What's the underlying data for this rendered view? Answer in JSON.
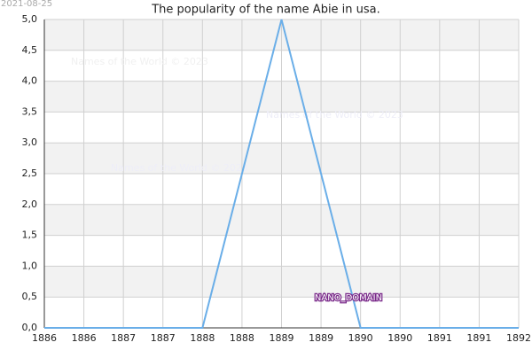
{
  "chart_data": {
    "type": "line",
    "title": "The popularity of the name Abie in usa.",
    "date": "2021-08-25",
    "watermarks": [
      "Names of the World © 2023",
      "Names of the World © 2023",
      "Names of the World © 2023"
    ],
    "badge": "NANO_DOMAIN",
    "x": [
      1886,
      1887,
      1888,
      1889,
      1890,
      1891,
      1892
    ],
    "series": [
      {
        "name": "Abie",
        "color": "#6aaee8",
        "values": [
          0,
          0,
          0,
          5,
          0,
          0,
          0
        ]
      }
    ],
    "xlim": [
      1886,
      1892
    ],
    "xticks": [
      1886,
      {
        "value": 1886.5,
        "label": "1886"
      },
      1887,
      {
        "value": 1887.5,
        "label": "1887"
      },
      1888,
      {
        "value": 1888.5,
        "label": "1888"
      },
      1889,
      {
        "value": 1889.5,
        "label": "1889"
      },
      1890,
      {
        "value": 1890.5,
        "label": "1890"
      },
      1891,
      {
        "value": 1891.5,
        "label": "1891"
      },
      1892
    ],
    "ylim": [
      0,
      5
    ],
    "yticks": [
      {
        "value": 0,
        "label": "0,0"
      },
      {
        "value": 0.5,
        "label": "0,5"
      },
      {
        "value": 1,
        "label": "1,0"
      },
      {
        "value": 1.5,
        "label": "1,5"
      },
      {
        "value": 2,
        "label": "2,0"
      },
      {
        "value": 2.5,
        "label": "2,5"
      },
      {
        "value": 3,
        "label": "3,0"
      },
      {
        "value": 3.5,
        "label": "3,5"
      },
      {
        "value": 4,
        "label": "4,0"
      },
      {
        "value": 4.5,
        "label": "4,5"
      },
      {
        "value": 5,
        "label": "5,0"
      }
    ],
    "grid": true
  }
}
